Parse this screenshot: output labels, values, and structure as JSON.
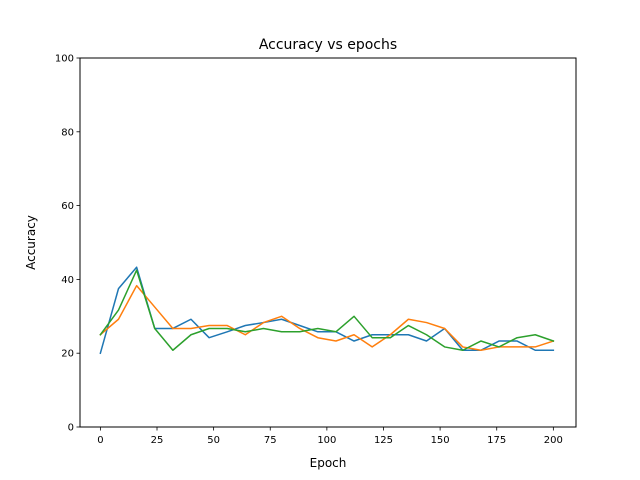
{
  "chart_data": {
    "type": "line",
    "title": "Accuracy vs epochs",
    "xlabel": "Epoch",
    "ylabel": "Accuracy",
    "xlim": [
      -9,
      210
    ],
    "ylim": [
      0,
      100
    ],
    "xticks": [
      0,
      25,
      50,
      75,
      100,
      125,
      150,
      175,
      200
    ],
    "yticks": [
      0,
      20,
      40,
      60,
      80,
      100
    ],
    "grid": false,
    "legend": "none",
    "x": [
      0,
      8,
      16,
      24,
      32,
      40,
      48,
      56,
      64,
      72,
      80,
      88,
      96,
      104,
      112,
      120,
      128,
      136,
      144,
      152,
      160,
      168,
      176,
      184,
      192,
      200
    ],
    "series": [
      {
        "color": "#1f77b4",
        "values": [
          20.0,
          37.5,
          43.3,
          26.7,
          26.7,
          29.2,
          24.2,
          25.8,
          27.5,
          28.3,
          29.2,
          27.5,
          25.8,
          25.8,
          23.3,
          25.0,
          25.0,
          25.0,
          23.3,
          26.7,
          20.8,
          20.8,
          23.3,
          23.3,
          20.8,
          20.8
        ]
      },
      {
        "color": "#ff7f0e",
        "values": [
          25.0,
          29.2,
          38.3,
          32.5,
          26.7,
          26.7,
          27.5,
          27.5,
          25.0,
          28.3,
          30.0,
          26.7,
          24.2,
          23.3,
          25.0,
          21.7,
          25.0,
          29.2,
          28.3,
          26.7,
          21.7,
          20.8,
          21.7,
          21.7,
          21.7,
          23.3
        ]
      },
      {
        "color": "#2ca02c",
        "values": [
          25.0,
          31.7,
          42.5,
          26.7,
          20.8,
          25.0,
          26.7,
          26.7,
          25.8,
          26.7,
          25.8,
          25.8,
          26.7,
          25.8,
          30.0,
          24.2,
          24.2,
          27.5,
          25.0,
          21.7,
          20.8,
          23.3,
          21.7,
          24.2,
          25.0,
          23.3
        ]
      }
    ]
  }
}
